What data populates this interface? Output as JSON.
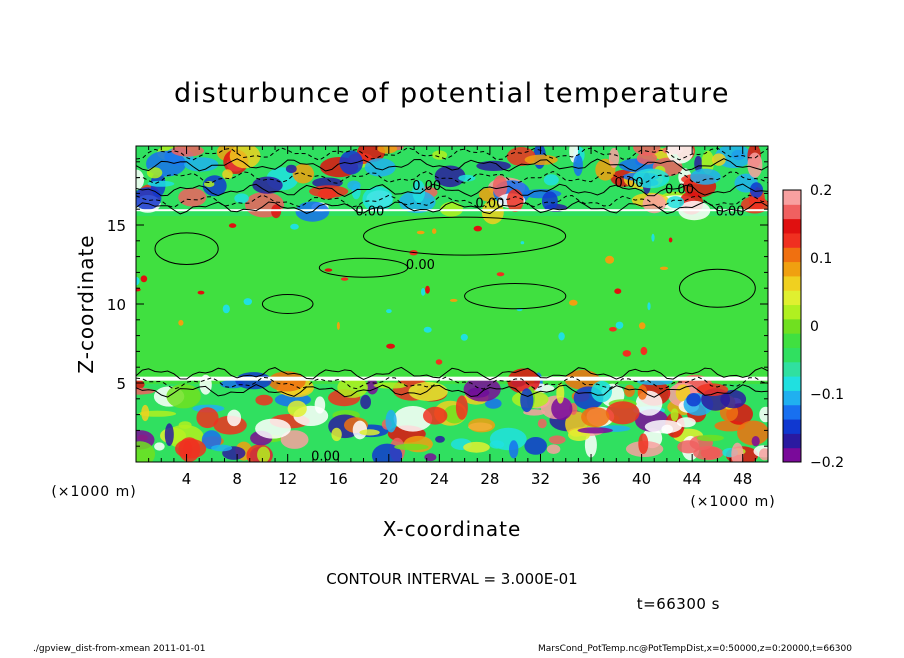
{
  "chart_data": {
    "type": "heatmap",
    "title": "disturbunce of potential temperature",
    "xlabel": "X-coordinate",
    "ylabel": "Z-coordinate",
    "x_unit": "(×1000 m)",
    "y_unit": "(×1000 m)",
    "xlim": [
      0,
      50
    ],
    "ylim": [
      0,
      20
    ],
    "x_ticks": [
      4,
      8,
      12,
      16,
      20,
      24,
      28,
      32,
      36,
      40,
      44,
      48
    ],
    "y_ticks": [
      5,
      10,
      15
    ],
    "colorbar": {
      "range": [
        -0.2,
        0.2
      ],
      "ticks": [
        {
          "value": 0.2,
          "label": "0.2"
        },
        {
          "value": 0.1,
          "label": "0.1"
        },
        {
          "value": 0,
          "label": "0"
        },
        {
          "value": -0.1,
          "label": "−0.1"
        },
        {
          "value": -0.2,
          "label": "−0.2"
        }
      ],
      "colors": [
        "#7a0a9a",
        "#2a1aa0",
        "#1038d0",
        "#1870f0",
        "#20b0f0",
        "#20e0e0",
        "#30e0a0",
        "#30e060",
        "#40e040",
        "#70e020",
        "#b0f020",
        "#e0f030",
        "#f0d020",
        "#f0a010",
        "#f07010",
        "#f03020",
        "#e01010",
        "#f06060",
        "#f8a0a0"
      ]
    },
    "contour_labels": [
      "0.00",
      "0.00",
      "0.00",
      "0.00",
      "0.00",
      "0.00",
      "0.00",
      "0.00"
    ],
    "contour_interval_text": "CONTOUR INTERVAL = 3.000E-01",
    "time_text": "t=66300 s",
    "footer_left": "./gpview_dist-from-xmean   2011-01-01",
    "footer_right": "MarsCond_PotTemp.nc@PotTempDist,x=0:50000,z=0:20000,t=66300"
  }
}
